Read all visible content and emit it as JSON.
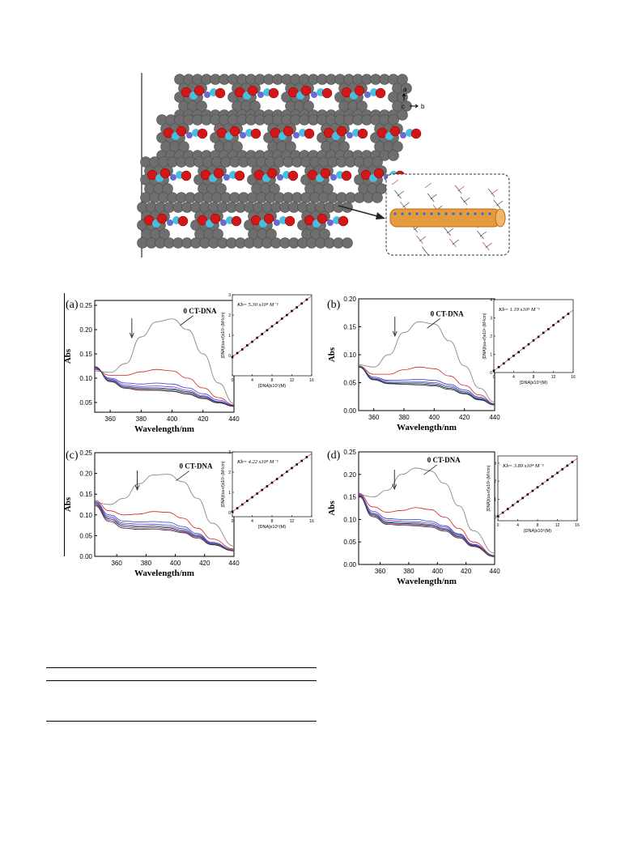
{
  "figure_top": {
    "axis_labels": {
      "a": "a",
      "c": "c",
      "b": "b"
    },
    "colors": {
      "carbon": "#6e6e6e",
      "oxygen": "#d01818",
      "metal": "#46c0e0",
      "nitrogen": "#6a6ad0",
      "channel": "#e59a3c"
    }
  },
  "common": {
    "xlabel": "Wavelength/nm",
    "ylabel": "Abs",
    "inset_xlabel": "[DNA]x10⁵(M)",
    "inset_ylabel": "[DNA]/(εa-εf)x10⁶ (M²/cm)",
    "series_colors": [
      "#000000",
      "#d02020",
      "#2b3bd6",
      "#8a2be2",
      "#1a1a8a",
      "#2a9a2a",
      "#c040a0",
      "#2080c0",
      "#303030",
      "#606020",
      "#5050ff"
    ]
  },
  "chart_data": [
    {
      "type": "line",
      "panel_label": "(a)",
      "annotation": "0 CT-DNA",
      "kb_label": "Kb= 5.30 x10⁴ M⁻¹",
      "xlim": [
        350,
        440
      ],
      "ylim": [
        0.03,
        0.26
      ],
      "yticks": [
        0.05,
        0.1,
        0.15,
        0.2,
        0.25
      ],
      "xticks": [
        360,
        380,
        400,
        420,
        440
      ],
      "x": [
        350,
        360,
        370,
        380,
        390,
        400,
        410,
        420,
        430,
        440
      ],
      "arrow_x": 374,
      "series": [
        {
          "color": "#888888",
          "values": [
            0.115,
            0.112,
            0.13,
            0.185,
            0.216,
            0.222,
            0.2,
            0.15,
            0.09,
            0.048
          ]
        },
        {
          "color": "#d02020",
          "values": [
            0.118,
            0.106,
            0.106,
            0.113,
            0.118,
            0.115,
            0.1,
            0.08,
            0.06,
            0.045
          ]
        },
        {
          "color": "#2b3bd6",
          "values": [
            0.12,
            0.1,
            0.09,
            0.088,
            0.09,
            0.088,
            0.08,
            0.068,
            0.055,
            0.044
          ]
        },
        {
          "color": "#8a2be2",
          "values": [
            0.121,
            0.098,
            0.086,
            0.083,
            0.084,
            0.082,
            0.075,
            0.064,
            0.052,
            0.043
          ]
        },
        {
          "color": "#1a1a8a",
          "values": [
            0.122,
            0.096,
            0.083,
            0.08,
            0.08,
            0.078,
            0.072,
            0.062,
            0.051,
            0.043
          ]
        },
        {
          "color": "#2a9a2a",
          "values": [
            0.123,
            0.095,
            0.081,
            0.078,
            0.078,
            0.076,
            0.07,
            0.06,
            0.05,
            0.042
          ]
        },
        {
          "color": "#c040a0",
          "values": [
            0.123,
            0.094,
            0.08,
            0.077,
            0.076,
            0.074,
            0.068,
            0.059,
            0.049,
            0.042
          ]
        },
        {
          "color": "#303030",
          "values": [
            0.124,
            0.093,
            0.079,
            0.075,
            0.075,
            0.073,
            0.067,
            0.058,
            0.049,
            0.042
          ]
        }
      ],
      "inset": {
        "xlim": [
          0,
          16
        ],
        "ylim": [
          -1,
          3
        ],
        "xticks": [
          0,
          4,
          8,
          12,
          16
        ],
        "yticks": [
          0,
          1,
          2,
          3
        ],
        "x": [
          0,
          1,
          2,
          3,
          4,
          5,
          6,
          7,
          8,
          9,
          10,
          11,
          12,
          13,
          14,
          15
        ],
        "y": [
          -0.08,
          0.12,
          0.3,
          0.5,
          0.68,
          0.88,
          1.06,
          1.25,
          1.44,
          1.62,
          1.82,
          2.0,
          2.2,
          2.38,
          2.57,
          2.76
        ]
      }
    },
    {
      "type": "line",
      "panel_label": "(b)",
      "annotation": "0 CT-DNA",
      "kb_label": "Kb= 1.19 x10⁵ M⁻¹",
      "xlim": [
        350,
        440
      ],
      "ylim": [
        0.0,
        0.2
      ],
      "yticks": [
        0.0,
        0.05,
        0.1,
        0.15,
        0.2
      ],
      "xticks": [
        360,
        380,
        400,
        420,
        440
      ],
      "x": [
        350,
        360,
        370,
        380,
        390,
        400,
        410,
        420,
        430,
        440
      ],
      "arrow_x": 374,
      "series": [
        {
          "color": "#888888",
          "values": [
            0.082,
            0.078,
            0.1,
            0.14,
            0.159,
            0.155,
            0.125,
            0.08,
            0.04,
            0.015
          ]
        },
        {
          "color": "#d02020",
          "values": [
            0.08,
            0.065,
            0.065,
            0.073,
            0.078,
            0.075,
            0.062,
            0.045,
            0.028,
            0.012
          ]
        },
        {
          "color": "#2b3bd6",
          "values": [
            0.079,
            0.06,
            0.054,
            0.055,
            0.056,
            0.054,
            0.047,
            0.037,
            0.024,
            0.012
          ]
        },
        {
          "color": "#8a2be2",
          "values": [
            0.079,
            0.058,
            0.052,
            0.052,
            0.052,
            0.05,
            0.044,
            0.034,
            0.022,
            0.011
          ]
        },
        {
          "color": "#2a9a2a",
          "values": [
            0.079,
            0.057,
            0.05,
            0.05,
            0.05,
            0.048,
            0.042,
            0.033,
            0.021,
            0.011
          ]
        },
        {
          "color": "#1a1a8a",
          "values": [
            0.078,
            0.056,
            0.049,
            0.048,
            0.048,
            0.046,
            0.04,
            0.031,
            0.02,
            0.01
          ]
        },
        {
          "color": "#303030",
          "values": [
            0.078,
            0.055,
            0.048,
            0.047,
            0.046,
            0.044,
            0.038,
            0.03,
            0.019,
            0.01
          ]
        }
      ],
      "inset": {
        "xlim": [
          0,
          16
        ],
        "ylim": [
          0,
          4
        ],
        "xticks": [
          0,
          4,
          8,
          12,
          16
        ],
        "yticks": [
          0,
          1,
          2,
          3,
          4
        ],
        "x": [
          0,
          1,
          2,
          3,
          4,
          5,
          6,
          7,
          8,
          9,
          10,
          11,
          12,
          13,
          14,
          15
        ],
        "y": [
          0.1,
          0.3,
          0.5,
          0.72,
          0.92,
          1.12,
          1.34,
          1.55,
          1.76,
          1.96,
          2.18,
          2.38,
          2.6,
          2.8,
          3.02,
          3.22
        ]
      }
    },
    {
      "type": "line",
      "panel_label": "(c)",
      "annotation": "0 CT-DNA",
      "kb_label": "Kb= 4.22 x10⁴ M⁻¹",
      "xlim": [
        345,
        440
      ],
      "ylim": [
        0.0,
        0.25
      ],
      "yticks": [
        0.0,
        0.05,
        0.1,
        0.15,
        0.2,
        0.25
      ],
      "xticks": [
        360,
        380,
        400,
        420,
        440
      ],
      "x": [
        345,
        355,
        365,
        375,
        385,
        395,
        405,
        415,
        425,
        440
      ],
      "arrow_x": 374,
      "series": [
        {
          "color": "#888888",
          "values": [
            0.13,
            0.125,
            0.14,
            0.175,
            0.196,
            0.198,
            0.18,
            0.14,
            0.08,
            0.025
          ]
        },
        {
          "color": "#d02020",
          "values": [
            0.135,
            0.11,
            0.1,
            0.102,
            0.108,
            0.106,
            0.092,
            0.068,
            0.042,
            0.018
          ]
        },
        {
          "color": "#2b3bd6",
          "values": [
            0.132,
            0.1,
            0.085,
            0.083,
            0.084,
            0.082,
            0.072,
            0.055,
            0.034,
            0.016
          ]
        },
        {
          "color": "#8a2be2",
          "values": [
            0.13,
            0.096,
            0.08,
            0.078,
            0.078,
            0.076,
            0.067,
            0.052,
            0.032,
            0.015
          ]
        },
        {
          "color": "#2a9a2a",
          "values": [
            0.128,
            0.093,
            0.077,
            0.074,
            0.075,
            0.072,
            0.064,
            0.05,
            0.031,
            0.015
          ]
        },
        {
          "color": "#1a1a8a",
          "values": [
            0.126,
            0.09,
            0.074,
            0.071,
            0.072,
            0.069,
            0.061,
            0.048,
            0.03,
            0.014
          ]
        },
        {
          "color": "#c040a0",
          "values": [
            0.124,
            0.087,
            0.071,
            0.068,
            0.069,
            0.066,
            0.059,
            0.046,
            0.029,
            0.014
          ]
        },
        {
          "color": "#303030",
          "values": [
            0.122,
            0.084,
            0.068,
            0.065,
            0.066,
            0.063,
            0.057,
            0.044,
            0.028,
            0.013
          ]
        }
      ],
      "inset": {
        "xlim": [
          0,
          16
        ],
        "ylim": [
          -0.2,
          3
        ],
        "xticks": [
          0,
          4,
          8,
          12,
          16
        ],
        "yticks": [
          0,
          1,
          2,
          3
        ],
        "x": [
          0,
          1,
          2,
          3,
          4,
          5,
          6,
          7,
          8,
          9,
          10,
          11,
          12,
          13,
          14,
          15
        ],
        "y": [
          0.05,
          0.22,
          0.4,
          0.58,
          0.76,
          0.94,
          1.12,
          1.3,
          1.48,
          1.66,
          1.84,
          2.02,
          2.2,
          2.38,
          2.56,
          2.74
        ]
      }
    },
    {
      "type": "line",
      "panel_label": "(d)",
      "annotation": "0 CT-DNA",
      "kb_label": "Kb= 3.89 x10⁴ M⁻¹",
      "xlim": [
        345,
        440
      ],
      "ylim": [
        0.0,
        0.25
      ],
      "yticks": [
        0.0,
        0.05,
        0.1,
        0.15,
        0.2,
        0.25
      ],
      "xticks": [
        360,
        380,
        400,
        420,
        440
      ],
      "x": [
        345,
        355,
        365,
        375,
        385,
        395,
        405,
        415,
        425,
        440
      ],
      "arrow_x": 370,
      "series": [
        {
          "color": "#888888",
          "values": [
            0.155,
            0.15,
            0.165,
            0.2,
            0.214,
            0.208,
            0.18,
            0.13,
            0.075,
            0.025
          ]
        },
        {
          "color": "#d02020",
          "values": [
            0.158,
            0.128,
            0.116,
            0.12,
            0.126,
            0.122,
            0.105,
            0.08,
            0.05,
            0.02
          ]
        },
        {
          "color": "#2b3bd6",
          "values": [
            0.156,
            0.118,
            0.102,
            0.1,
            0.1,
            0.096,
            0.086,
            0.068,
            0.045,
            0.02
          ]
        },
        {
          "color": "#8a2be2",
          "values": [
            0.155,
            0.114,
            0.098,
            0.096,
            0.095,
            0.092,
            0.083,
            0.066,
            0.044,
            0.019
          ]
        },
        {
          "color": "#2a9a2a",
          "values": [
            0.154,
            0.112,
            0.095,
            0.093,
            0.092,
            0.089,
            0.08,
            0.064,
            0.043,
            0.019
          ]
        },
        {
          "color": "#1a1a8a",
          "values": [
            0.153,
            0.11,
            0.093,
            0.091,
            0.09,
            0.087,
            0.078,
            0.062,
            0.042,
            0.018
          ]
        },
        {
          "color": "#c040a0",
          "values": [
            0.152,
            0.108,
            0.091,
            0.089,
            0.088,
            0.085,
            0.076,
            0.061,
            0.041,
            0.018
          ]
        },
        {
          "color": "#303030",
          "values": [
            0.151,
            0.106,
            0.089,
            0.087,
            0.086,
            0.083,
            0.074,
            0.059,
            0.04,
            0.017
          ]
        }
      ],
      "inset": {
        "xlim": [
          0,
          16
        ],
        "ylim": [
          -0.2,
          3.4
        ],
        "xticks": [
          0,
          4,
          8,
          12,
          16
        ],
        "yticks": [
          0,
          1,
          2,
          3
        ],
        "x": [
          0,
          1,
          2,
          3,
          4,
          5,
          6,
          7,
          8,
          9,
          10,
          11,
          12,
          13,
          14,
          15
        ],
        "y": [
          0.05,
          0.25,
          0.45,
          0.66,
          0.86,
          1.06,
          1.26,
          1.46,
          1.66,
          1.86,
          2.06,
          2.26,
          2.46,
          2.66,
          2.86,
          3.06
        ]
      }
    }
  ]
}
